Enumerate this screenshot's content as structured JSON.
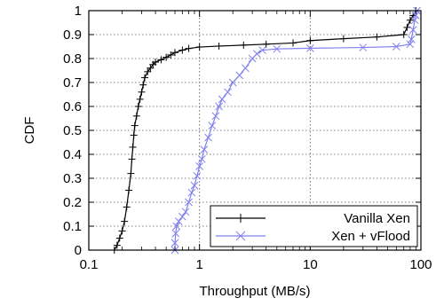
{
  "chart_data": {
    "type": "line",
    "title": "",
    "xlabel": "Throughput (MB/s)",
    "ylabel": "CDF",
    "x_scale": "log",
    "xlim": [
      0.1,
      100
    ],
    "ylim": [
      0,
      1
    ],
    "x_ticks": [
      0.1,
      1,
      10,
      100
    ],
    "x_tick_labels": [
      "0.1",
      "1",
      "10",
      "100"
    ],
    "y_ticks": [
      0,
      0.1,
      0.2,
      0.3,
      0.4,
      0.5,
      0.6,
      0.7,
      0.8,
      0.9,
      1
    ],
    "y_tick_labels": [
      "0",
      "0.1",
      "0.2",
      "0.3",
      "0.4",
      "0.5",
      "0.6",
      "0.7",
      "0.8",
      "0.9",
      "1"
    ],
    "grid": true,
    "legend_position": "bottom-right",
    "series": [
      {
        "name": "Vanilla Xen",
        "color": "#000000",
        "marker": "plus",
        "points": [
          [
            0.17,
            0.0
          ],
          [
            0.18,
            0.02
          ],
          [
            0.19,
            0.05
          ],
          [
            0.2,
            0.08
          ],
          [
            0.21,
            0.12
          ],
          [
            0.22,
            0.18
          ],
          [
            0.23,
            0.25
          ],
          [
            0.24,
            0.32
          ],
          [
            0.245,
            0.38
          ],
          [
            0.25,
            0.43
          ],
          [
            0.255,
            0.48
          ],
          [
            0.26,
            0.52
          ],
          [
            0.27,
            0.56
          ],
          [
            0.28,
            0.6
          ],
          [
            0.29,
            0.63
          ],
          [
            0.3,
            0.66
          ],
          [
            0.31,
            0.69
          ],
          [
            0.32,
            0.72
          ],
          [
            0.34,
            0.745
          ],
          [
            0.36,
            0.76
          ],
          [
            0.38,
            0.775
          ],
          [
            0.4,
            0.785
          ],
          [
            0.45,
            0.795
          ],
          [
            0.5,
            0.805
          ],
          [
            0.55,
            0.815
          ],
          [
            0.6,
            0.825
          ],
          [
            0.7,
            0.835
          ],
          [
            0.8,
            0.842
          ],
          [
            1.0,
            0.848
          ],
          [
            1.5,
            0.852
          ],
          [
            2.5,
            0.856
          ],
          [
            4.0,
            0.86
          ],
          [
            7.0,
            0.865
          ],
          [
            10.0,
            0.875
          ],
          [
            20.0,
            0.883
          ],
          [
            40.0,
            0.89
          ],
          [
            70.0,
            0.9
          ],
          [
            75.0,
            0.93
          ],
          [
            80.0,
            0.96
          ],
          [
            85.0,
            0.98
          ],
          [
            90.0,
            1.0
          ]
        ]
      },
      {
        "name": "Xen + vFlood",
        "color": "#8080f0",
        "marker": "cross",
        "points": [
          [
            0.6,
            0.0
          ],
          [
            0.6,
            0.03
          ],
          [
            0.61,
            0.07
          ],
          [
            0.62,
            0.1
          ],
          [
            0.65,
            0.12
          ],
          [
            0.7,
            0.14
          ],
          [
            0.75,
            0.16
          ],
          [
            0.8,
            0.2
          ],
          [
            0.85,
            0.24
          ],
          [
            0.9,
            0.27
          ],
          [
            0.95,
            0.31
          ],
          [
            1.0,
            0.35
          ],
          [
            1.05,
            0.38
          ],
          [
            1.1,
            0.42
          ],
          [
            1.2,
            0.47
          ],
          [
            1.3,
            0.52
          ],
          [
            1.4,
            0.56
          ],
          [
            1.5,
            0.6
          ],
          [
            1.6,
            0.63
          ],
          [
            1.8,
            0.66
          ],
          [
            2.0,
            0.7
          ],
          [
            2.3,
            0.73
          ],
          [
            2.6,
            0.76
          ],
          [
            3.0,
            0.8
          ],
          [
            3.3,
            0.82
          ],
          [
            3.7,
            0.835
          ],
          [
            5.0,
            0.84
          ],
          [
            10.0,
            0.843
          ],
          [
            30.0,
            0.846
          ],
          [
            60.0,
            0.85
          ],
          [
            80.0,
            0.86
          ],
          [
            82.0,
            0.88
          ],
          [
            85.0,
            0.92
          ],
          [
            88.0,
            0.96
          ],
          [
            90.0,
            0.98
          ],
          [
            92.0,
            1.0
          ]
        ]
      }
    ]
  }
}
